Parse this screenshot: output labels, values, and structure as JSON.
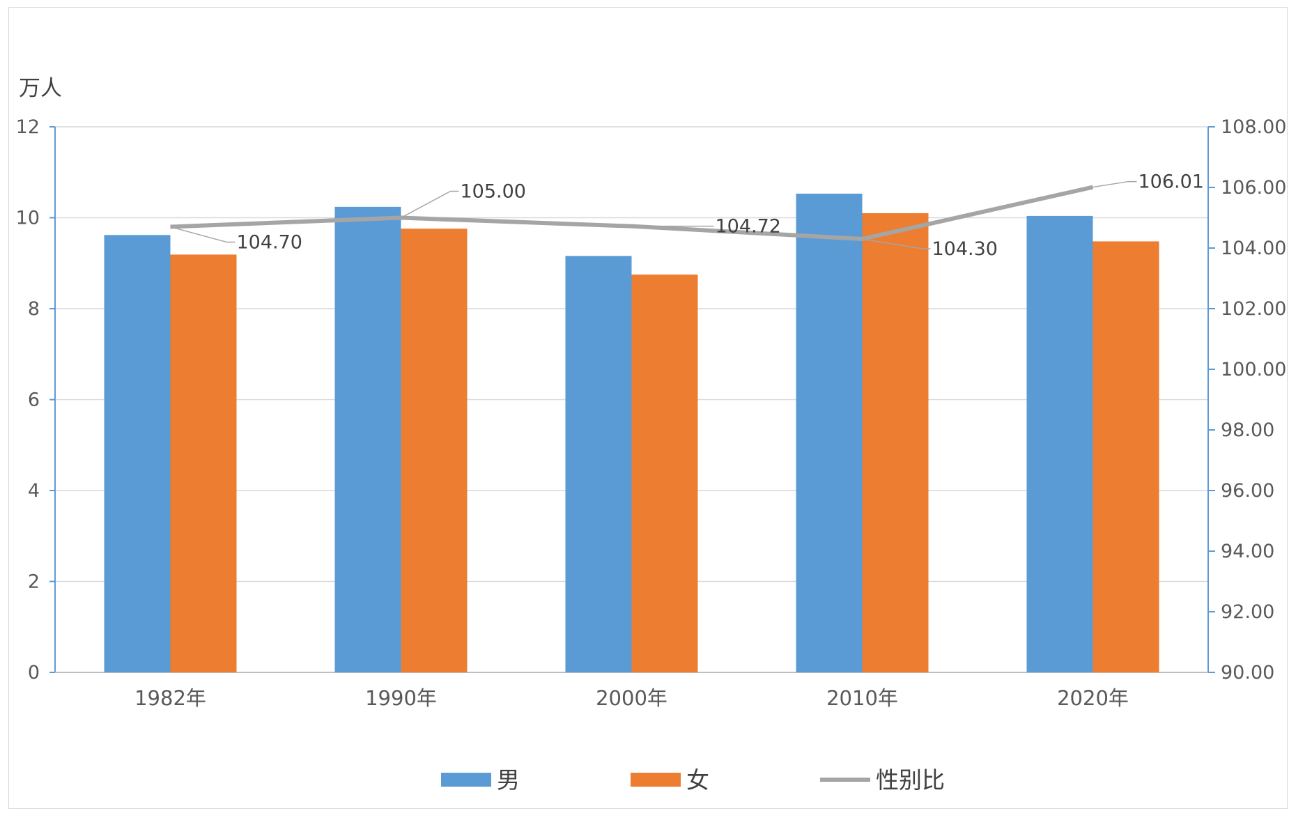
{
  "chart_data": {
    "type": "bar",
    "title": "",
    "y_unit": "万人",
    "categories": [
      "1982年",
      "1990年",
      "2000年",
      "2010年",
      "2020年"
    ],
    "ylim": [
      0,
      12
    ],
    "y_ticks": [
      "0",
      "2",
      "4",
      "6",
      "8",
      "10",
      "12"
    ],
    "y2lim": [
      90,
      108
    ],
    "y2_ticks": [
      "90.00",
      "92.00",
      "94.00",
      "96.00",
      "98.00",
      "100.00",
      "102.00",
      "104.00",
      "106.00",
      "108.00"
    ],
    "series": [
      {
        "name": "男",
        "type": "bar",
        "axis": "left",
        "color": "#5b9bd5",
        "values": [
          9.62,
          10.24,
          9.16,
          10.53,
          10.04
        ]
      },
      {
        "name": "女",
        "type": "bar",
        "axis": "left",
        "color": "#ed7d31",
        "values": [
          9.19,
          9.76,
          8.75,
          10.1,
          9.48
        ]
      },
      {
        "name": "性别比",
        "type": "line",
        "axis": "right",
        "color": "#a5a5a5",
        "values": [
          104.7,
          105.0,
          104.72,
          104.3,
          106.01
        ],
        "labels": [
          "104.70",
          "105.00",
          "104.72",
          "104.30",
          "106.01"
        ]
      }
    ],
    "grid": true,
    "legend_position": "bottom"
  }
}
